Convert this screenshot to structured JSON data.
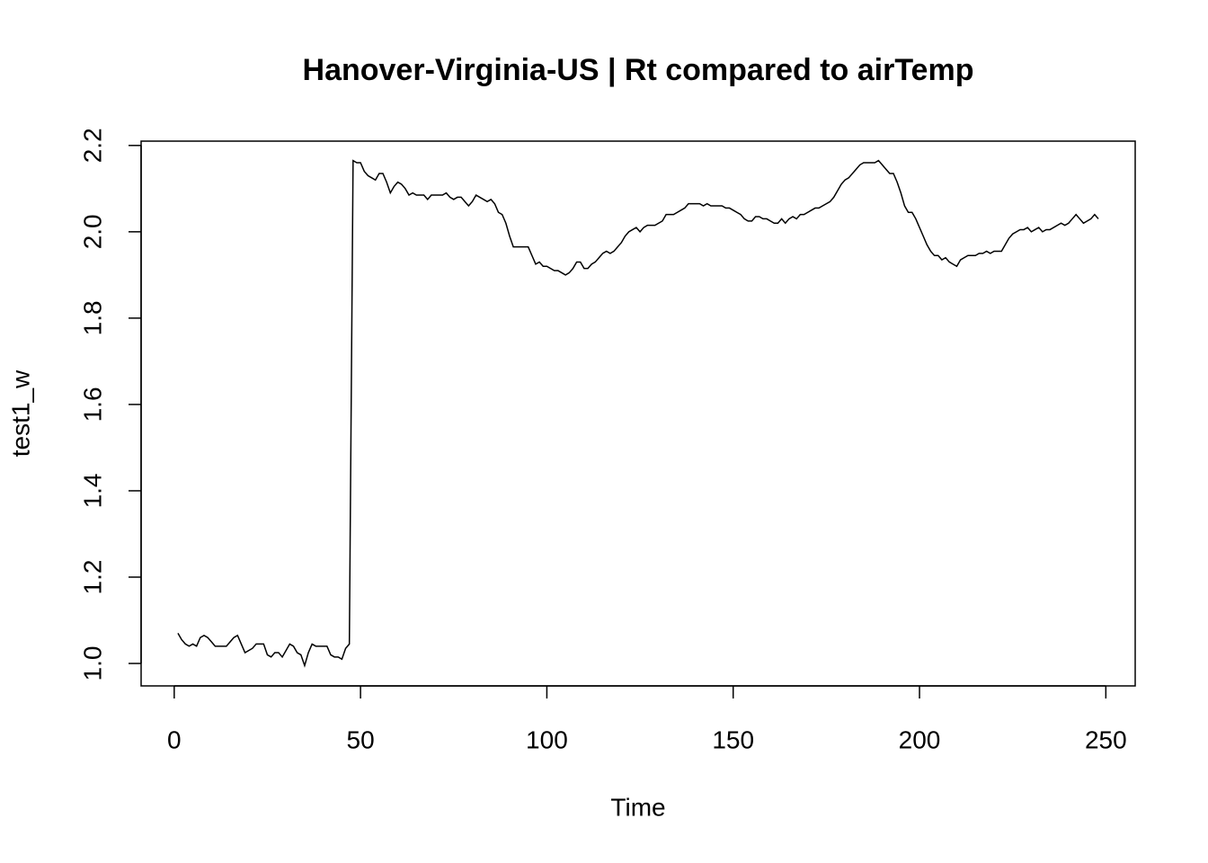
{
  "chart_data": {
    "type": "line",
    "title": "Hanover-Virginia-US | Rt compared to airTemp",
    "x_label": "Time",
    "y_label": "test1_w",
    "color": "#000000",
    "xlim": [
      -8.88,
      257.88
    ],
    "ylim": [
      0.948,
      2.21
    ],
    "xticks": [
      0,
      50,
      100,
      150,
      200,
      250
    ],
    "yticks": [
      {
        "value": 1,
        "label": "1.0"
      },
      1.2,
      1.4,
      1.6,
      1.8,
      {
        "value": 2,
        "label": "2.0"
      },
      2.2
    ],
    "x": [
      1,
      2,
      3,
      4,
      5,
      6,
      7,
      8,
      9,
      10,
      11,
      12,
      13,
      14,
      15,
      16,
      17,
      18,
      19,
      20,
      21,
      22,
      23,
      24,
      25,
      26,
      27,
      28,
      29,
      30,
      31,
      32,
      33,
      34,
      35,
      36,
      37,
      38,
      39,
      40,
      41,
      42,
      43,
      44,
      45,
      46,
      47,
      48,
      49,
      50,
      51,
      52,
      53,
      54,
      55,
      56,
      57,
      58,
      59,
      60,
      61,
      62,
      63,
      64,
      65,
      66,
      67,
      68,
      69,
      70,
      71,
      72,
      73,
      74,
      75,
      76,
      77,
      78,
      79,
      80,
      81,
      82,
      83,
      84,
      85,
      86,
      87,
      88,
      89,
      90,
      91,
      92,
      93,
      94,
      95,
      96,
      97,
      98,
      99,
      100,
      101,
      102,
      103,
      104,
      105,
      106,
      107,
      108,
      109,
      110,
      111,
      112,
      113,
      114,
      115,
      116,
      117,
      118,
      119,
      120,
      121,
      122,
      123,
      124,
      125,
      126,
      127,
      128,
      129,
      130,
      131,
      132,
      133,
      134,
      135,
      136,
      137,
      138,
      139,
      140,
      141,
      142,
      143,
      144,
      145,
      146,
      147,
      148,
      149,
      150,
      151,
      152,
      153,
      154,
      155,
      156,
      157,
      158,
      159,
      160,
      161,
      162,
      163,
      164,
      165,
      166,
      167,
      168,
      169,
      170,
      171,
      172,
      173,
      174,
      175,
      176,
      177,
      178,
      179,
      180,
      181,
      182,
      183,
      184,
      185,
      186,
      187,
      188,
      189,
      190,
      191,
      192,
      193,
      194,
      195,
      196,
      197,
      198,
      199,
      200,
      201,
      202,
      203,
      204,
      205,
      206,
      207,
      208,
      209,
      210,
      211,
      212,
      213,
      214,
      215,
      216,
      217,
      218,
      219,
      220,
      221,
      222,
      223,
      224,
      225,
      226,
      227,
      228,
      229,
      230,
      231,
      232,
      233,
      234,
      235,
      236,
      237,
      238,
      239,
      240,
      241,
      242,
      243,
      244,
      245,
      246,
      247,
      248
    ],
    "values": [
      1.07,
      1.055,
      1.045,
      1.04,
      1.045,
      1.04,
      1.06,
      1.065,
      1.06,
      1.05,
      1.04,
      1.04,
      1.04,
      1.04,
      1.05,
      1.06,
      1.065,
      1.045,
      1.025,
      1.03,
      1.035,
      1.045,
      1.045,
      1.045,
      1.02,
      1.015,
      1.025,
      1.025,
      1.015,
      1.03,
      1.045,
      1.04,
      1.025,
      1.02,
      0.995,
      1.025,
      1.045,
      1.04,
      1.04,
      1.04,
      1.04,
      1.02,
      1.015,
      1.015,
      1.01,
      1.035,
      1.045,
      2.165,
      2.16,
      2.16,
      2.14,
      2.13,
      2.125,
      2.12,
      2.135,
      2.135,
      2.115,
      2.09,
      2.105,
      2.115,
      2.11,
      2.1,
      2.085,
      2.09,
      2.085,
      2.085,
      2.085,
      2.075,
      2.085,
      2.085,
      2.085,
      2.085,
      2.09,
      2.08,
      2.075,
      2.08,
      2.08,
      2.07,
      2.06,
      2.07,
      2.085,
      2.08,
      2.075,
      2.07,
      2.075,
      2.065,
      2.045,
      2.04,
      2.02,
      1.99,
      1.965,
      1.965,
      1.965,
      1.965,
      1.965,
      1.945,
      1.925,
      1.93,
      1.92,
      1.92,
      1.915,
      1.91,
      1.91,
      1.905,
      1.9,
      1.905,
      1.915,
      1.93,
      1.93,
      1.915,
      1.915,
      1.925,
      1.93,
      1.94,
      1.95,
      1.955,
      1.95,
      1.955,
      1.965,
      1.975,
      1.99,
      2.0,
      2.005,
      2.01,
      2.0,
      2.01,
      2.015,
      2.015,
      2.015,
      2.02,
      2.025,
      2.04,
      2.04,
      2.04,
      2.045,
      2.05,
      2.055,
      2.065,
      2.065,
      2.065,
      2.065,
      2.06,
      2.065,
      2.06,
      2.06,
      2.06,
      2.06,
      2.055,
      2.055,
      2.05,
      2.045,
      2.04,
      2.03,
      2.025,
      2.025,
      2.035,
      2.035,
      2.03,
      2.03,
      2.025,
      2.02,
      2.02,
      2.03,
      2.02,
      2.03,
      2.035,
      2.03,
      2.04,
      2.04,
      2.045,
      2.05,
      2.055,
      2.055,
      2.06,
      2.065,
      2.07,
      2.08,
      2.095,
      2.11,
      2.12,
      2.125,
      2.135,
      2.145,
      2.155,
      2.16,
      2.16,
      2.16,
      2.16,
      2.165,
      2.155,
      2.145,
      2.135,
      2.135,
      2.115,
      2.09,
      2.06,
      2.045,
      2.045,
      2.03,
      2.01,
      1.99,
      1.97,
      1.955,
      1.945,
      1.945,
      1.935,
      1.94,
      1.93,
      1.925,
      1.92,
      1.935,
      1.94,
      1.945,
      1.945,
      1.945,
      1.95,
      1.95,
      1.955,
      1.95,
      1.955,
      1.955,
      1.955,
      1.97,
      1.985,
      1.995,
      2.0,
      2.005,
      2.005,
      2.01,
      2.0,
      2.005,
      2.01,
      2.0,
      2.005,
      2.005,
      2.01,
      2.015,
      2.02,
      2.015,
      2.02,
      2.03,
      2.04,
      2.03,
      2.02,
      2.025,
      2.03,
      2.04,
      2.03
    ]
  }
}
